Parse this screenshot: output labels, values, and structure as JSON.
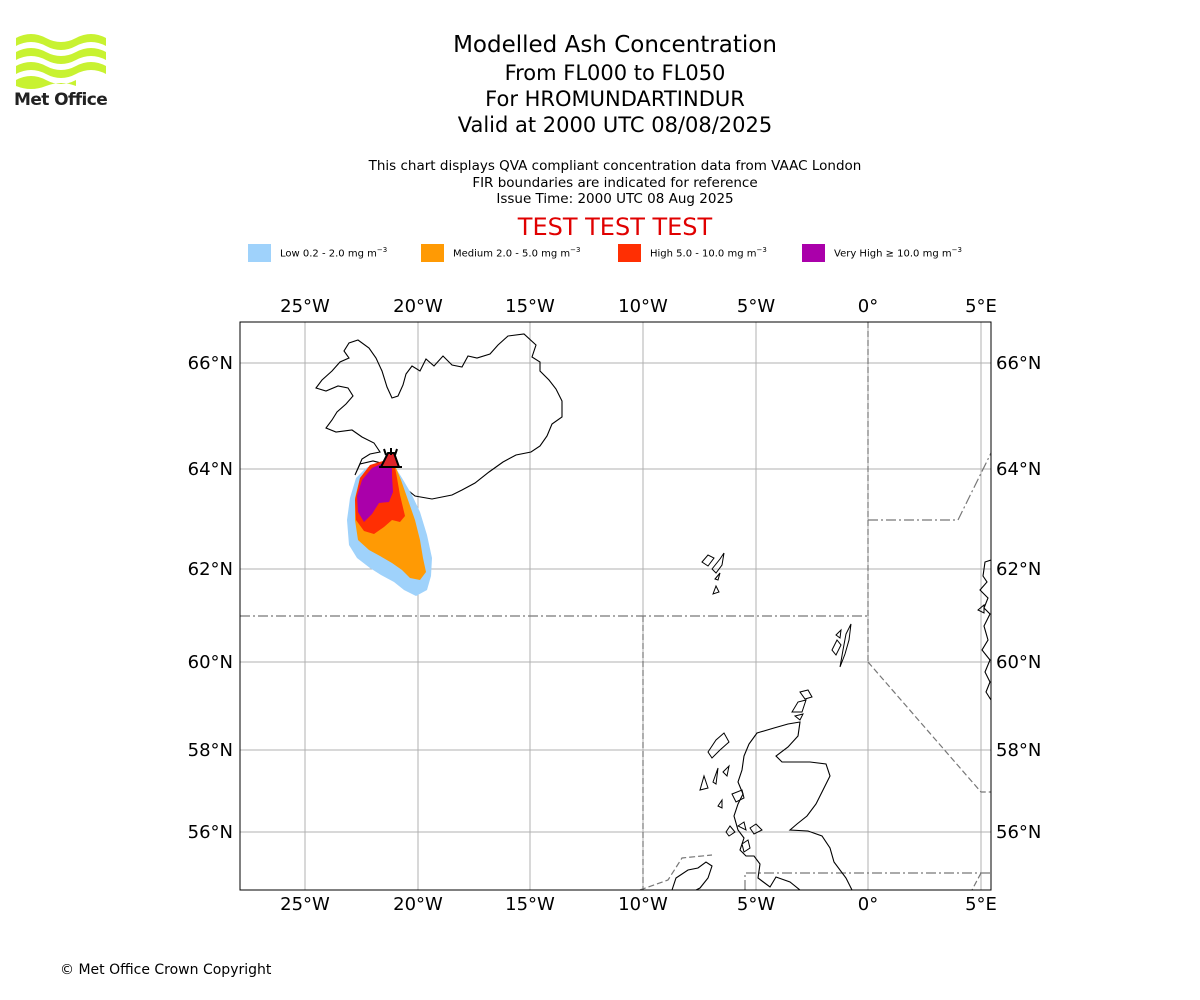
{
  "logo": {
    "name": "Met Office",
    "color": "#c8f231"
  },
  "title": {
    "line1": "Modelled Ash Concentration",
    "line2": "From FL000 to FL050",
    "line3": "For HROMUNDARTINDUR",
    "line4": "Valid at 2000 UTC 08/08/2025"
  },
  "subtitle": {
    "line1": "This chart displays QVA compliant concentration data from VAAC London",
    "line2": "FIR boundaries are indicated for reference",
    "line3": "Issue Time: 2000 UTC 08 Aug 2025"
  },
  "test_banner": "TEST TEST TEST",
  "legend": [
    {
      "label": "Low 0.2 - 2.0 mg m",
      "color": "#9fd2fb"
    },
    {
      "label": "Medium 2.0 - 5.0 mg m",
      "color": "#ff9a04"
    },
    {
      "label": "High 5.0 - 10.0 mg m",
      "color": "#ff2f03"
    },
    {
      "label": "Very High ≥ 10.0 mg m",
      "color": "#aa00aa"
    }
  ],
  "legend_unit_exp": "−3",
  "map": {
    "lon_ticks": [
      "25°W",
      "20°W",
      "15°W",
      "10°W",
      "5°W",
      "0°",
      "5°E"
    ],
    "lat_ticks": [
      "66°N",
      "64°N",
      "62°N",
      "60°N",
      "58°N",
      "56°N"
    ],
    "volcano_icon": "volcano-marker-icon"
  },
  "copyright": "© Met Office Crown Copyright"
}
